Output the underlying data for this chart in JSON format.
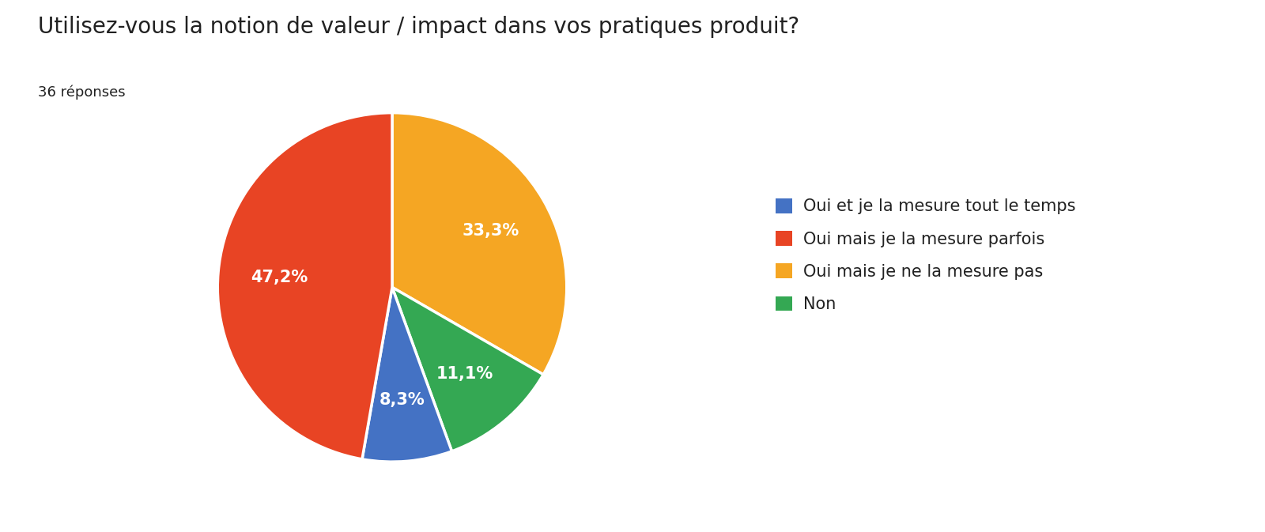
{
  "title": "Utilisez-vous la notion de valeur / impact dans vos pratiques produit?",
  "subtitle": "36 réponses",
  "labels": [
    "Oui et je la mesure tout le temps",
    "Oui mais je la mesure parfois",
    "Oui mais je ne la mesure pas",
    "Non"
  ],
  "values": [
    8.3,
    47.2,
    33.3,
    11.1
  ],
  "colors": [
    "#4472C4",
    "#E84424",
    "#F5A623",
    "#34A853"
  ],
  "pct_labels": [
    "8,3%",
    "47,2%",
    "33,3%",
    "11,1%"
  ],
  "title_fontsize": 20,
  "subtitle_fontsize": 13,
  "legend_fontsize": 15,
  "pct_fontsize": 15,
  "background_color": "#ffffff",
  "text_color": "#212121",
  "startangle": 90
}
